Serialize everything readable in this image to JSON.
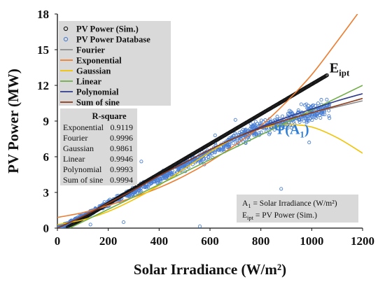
{
  "chart_data": {
    "type": "scatter",
    "title": "",
    "xlabel": "Solar Irradiance (W/m²)",
    "ylabel": "PV Power (MW)",
    "xlim": [
      0,
      1200
    ],
    "ylim": [
      0,
      18
    ],
    "xticks": [
      "0",
      "200",
      "400",
      "600",
      "800",
      "1000",
      "1200"
    ],
    "yticks": [
      "0",
      "3",
      "6",
      "9",
      "12",
      "15",
      "18"
    ],
    "legend_position": "top-left",
    "grid": false,
    "series": [
      {
        "name": "PV Power (Sim.)",
        "kind": "scatter",
        "marker": "open-circle",
        "color": "#111111",
        "x_range": [
          40,
          1060
        ],
        "slope": 0.01255,
        "intercept": -0.45
      },
      {
        "name": "PV Power Database",
        "kind": "scatter",
        "marker": "open-circle",
        "color": "#4a7fd4",
        "x_range": [
          0,
          1070
        ]
      },
      {
        "name": "Fourier",
        "kind": "line",
        "color": "#8c8c8c",
        "x": [
          0,
          100,
          200,
          300,
          400,
          500,
          600,
          700,
          800,
          900,
          1000,
          1100,
          1200
        ],
        "y": [
          0.0,
          1.0,
          2.1,
          3.2,
          4.4,
          5.5,
          6.6,
          7.6,
          8.4,
          9.1,
          9.7,
          10.2,
          10.7
        ]
      },
      {
        "name": "Exponential",
        "kind": "line",
        "color": "#ed7d31",
        "x": [
          0,
          100,
          200,
          300,
          400,
          500,
          600,
          700,
          800,
          900,
          1000,
          1100,
          1180
        ],
        "y": [
          0.9,
          1.3,
          1.9,
          2.6,
          3.4,
          4.4,
          5.6,
          7.0,
          8.6,
          10.6,
          12.9,
          15.7,
          18.0
        ]
      },
      {
        "name": "Gaussian",
        "kind": "line",
        "color": "#f2c200",
        "x": [
          0,
          100,
          200,
          300,
          400,
          500,
          600,
          700,
          800,
          900,
          1000,
          1100,
          1200
        ],
        "y": [
          0.3,
          0.7,
          1.4,
          2.4,
          3.6,
          5.0,
          6.4,
          7.6,
          8.4,
          8.7,
          8.5,
          7.6,
          6.3
        ]
      },
      {
        "name": "Linear",
        "kind": "line",
        "color": "#70ad47",
        "x": [
          0,
          1200
        ],
        "y": [
          -0.5,
          12.0
        ]
      },
      {
        "name": "Polynomial",
        "kind": "line",
        "color": "#2e3b8c",
        "x": [
          0,
          100,
          200,
          300,
          400,
          500,
          600,
          700,
          800,
          900,
          1000,
          1100,
          1200
        ],
        "y": [
          0.0,
          1.0,
          2.1,
          3.2,
          4.4,
          5.5,
          6.6,
          7.6,
          8.5,
          9.3,
          10.0,
          10.7,
          11.3
        ]
      },
      {
        "name": "Sum of sine",
        "kind": "line",
        "color": "#8b3a1a",
        "x": [
          0,
          100,
          200,
          300,
          400,
          500,
          600,
          700,
          800,
          900,
          1000,
          1100,
          1200
        ],
        "y": [
          0.0,
          1.0,
          2.1,
          3.2,
          4.4,
          5.5,
          6.6,
          7.6,
          8.4,
          9.1,
          9.7,
          10.3,
          10.9
        ]
      }
    ],
    "r_square": {
      "title": "R-square",
      "rows": [
        {
          "name": "Exponential",
          "value": "0.9119"
        },
        {
          "name": "Fourier",
          "value": "0.9996"
        },
        {
          "name": "Gaussian",
          "value": "0.9861"
        },
        {
          "name": "Linear",
          "value": "0.9946"
        },
        {
          "name": "Polynomial",
          "value": "0.9993"
        },
        {
          "name": "Sum of sine",
          "value": "0.9994"
        }
      ]
    },
    "annotations": {
      "eipt": {
        "main": "E",
        "sub": "ipt",
        "x": 1070,
        "y": 13.1
      },
      "psi": {
        "main": "Ψ(A",
        "sub": "1",
        "close": ")",
        "x": 990,
        "y": 7.9,
        "color": "#2f7ed8"
      },
      "note_line1": {
        "pre": "A",
        "sub": "1",
        "post": " = Solar Irradiance (W/m²)"
      },
      "note_line2": {
        "pre": "E",
        "sub": "ipt",
        "post": " = PV Power (Sim.)"
      }
    }
  }
}
